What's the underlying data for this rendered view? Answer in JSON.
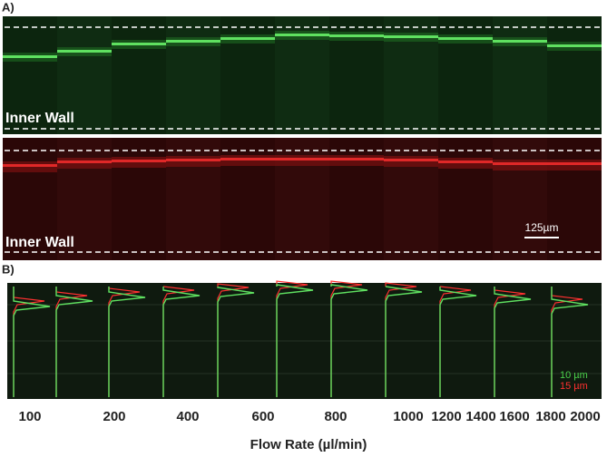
{
  "panel_a": {
    "label": "A)",
    "green_image_label": "Inner Wall",
    "red_image_label": "Inner Wall",
    "scale_bar": "125µm"
  },
  "panel_b": {
    "label": "B)",
    "legend": [
      "10 µm",
      "15 µm"
    ],
    "flow_rates": [
      "100",
      "200",
      "400",
      "600",
      "800",
      "1000",
      "1200",
      "1400",
      "1600",
      "1800",
      "2000"
    ],
    "axis_title": "Flow Rate (µl/min)"
  }
}
